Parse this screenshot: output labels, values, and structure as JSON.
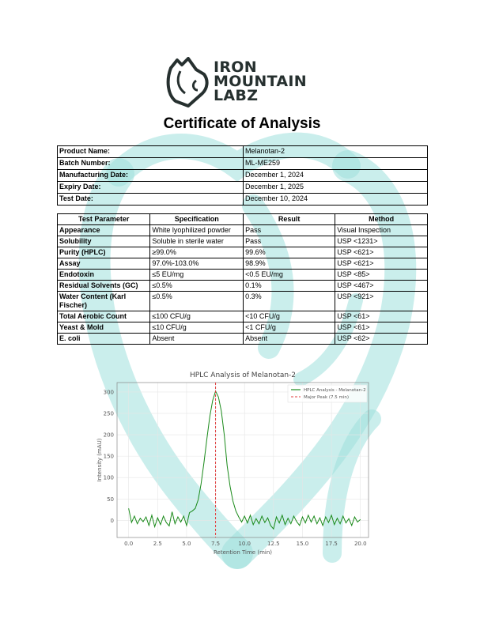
{
  "logo": {
    "line1": "IRON",
    "line2": "MOUNTAIN",
    "line3": "LABZ"
  },
  "title": "Certificate of Analysis",
  "info": [
    {
      "label": "Product Name:",
      "value": "Melanotan-2"
    },
    {
      "label": "Batch Number:",
      "value": "ML-ME259"
    },
    {
      "label": "Manufacturing Date:",
      "value": "December 1, 2024"
    },
    {
      "label": "Expiry Date:",
      "value": "December 1, 2025"
    },
    {
      "label": "Test Date:",
      "value": "December 10, 2024"
    }
  ],
  "tests": {
    "headers": [
      "Test Parameter",
      "Specification",
      "Result",
      "Method"
    ],
    "rows": [
      [
        "Appearance",
        "White lyophilized powder",
        "Pass",
        "Visual Inspection"
      ],
      [
        "Solubility",
        "Soluble in sterile water",
        "Pass",
        "USP <1231>"
      ],
      [
        "Purity (HPLC)",
        "≥99.0%",
        "99.6%",
        "USP <621>"
      ],
      [
        "Assay",
        "97.0%-103.0%",
        "98.9%",
        "USP <621>"
      ],
      [
        "Endotoxin",
        "≤5 EU/mg",
        "<0.5 EU/mg",
        "USP <85>"
      ],
      [
        "Residual Solvents (GC)",
        "≤0.5%",
        "0.1%",
        "USP <467>"
      ],
      [
        "Water Content (Karl Fischer)",
        "≤0.5%",
        "0.3%",
        "USP <921>"
      ],
      [
        "Total Aerobic Count",
        "≤100 CFU/g",
        "<10 CFU/g",
        "USP <61>"
      ],
      [
        "Yeast & Mold",
        "≤10 CFU/g",
        "<1 CFU/g",
        "USP <61>"
      ],
      [
        "E. coli",
        "Absent",
        "Absent",
        "USP <62>"
      ]
    ]
  },
  "chart_data": {
    "type": "line",
    "title": "HPLC Analysis of Melanotan-2",
    "xlabel": "Retention Time (min)",
    "ylabel": "Intensity (mAU)",
    "xlim": [
      -1,
      20.7
    ],
    "ylim": [
      -40,
      322
    ],
    "xticks": [
      "0.0",
      "2.5",
      "5.0",
      "7.5",
      "10.0",
      "12.5",
      "15.0",
      "17.5",
      "20.0"
    ],
    "yticks": [
      "0",
      "50",
      "100",
      "150",
      "200",
      "250",
      "300"
    ],
    "grid": true,
    "legend_position": "top-right",
    "series": [
      {
        "name": "HPLC Analysis - Melanotan-2",
        "color": "#1a8a1a",
        "x": [
          0,
          0.25,
          0.5,
          0.75,
          1,
          1.25,
          1.5,
          1.75,
          2,
          2.25,
          2.5,
          2.75,
          3,
          3.25,
          3.5,
          3.75,
          4,
          4.25,
          4.5,
          4.75,
          5,
          5.25,
          5.5,
          5.75,
          6,
          6.25,
          6.5,
          6.75,
          7,
          7.25,
          7.5,
          7.75,
          8,
          8.25,
          8.5,
          8.75,
          9,
          9.25,
          9.5,
          9.75,
          10,
          10.25,
          10.5,
          10.75,
          11,
          11.25,
          11.5,
          11.75,
          12,
          12.25,
          12.5,
          12.75,
          13,
          13.25,
          13.5,
          13.75,
          14,
          14.25,
          14.5,
          14.75,
          15,
          15.25,
          15.5,
          15.75,
          16,
          16.25,
          16.5,
          16.75,
          17,
          17.25,
          17.5,
          17.75,
          18,
          18.25,
          18.5,
          18.75,
          19,
          19.25,
          19.5,
          19.75,
          20
        ],
        "y": [
          28,
          -5,
          10,
          -8,
          5,
          -3,
          8,
          -12,
          12,
          -15,
          6,
          -10,
          10,
          -5,
          -13,
          20,
          -8,
          8,
          -4,
          10,
          -12,
          18,
          22,
          28,
          48,
          85,
          135,
          190,
          242,
          280,
          302,
          288,
          255,
          200,
          128,
          80,
          45,
          22,
          8,
          -4,
          10,
          -6,
          12,
          -10,
          4,
          -8,
          10,
          -5,
          6,
          -12,
          -20,
          8,
          -6,
          12,
          -10,
          5,
          -8,
          10,
          -3,
          -12,
          8,
          -6,
          12,
          -4,
          10,
          -8,
          6,
          -12,
          8,
          -5,
          12,
          -10,
          5,
          -8,
          10,
          -6,
          4,
          -12,
          8,
          -4,
          2
        ]
      },
      {
        "name": "Major Peak (7.5 min)",
        "color": "#e03c3c",
        "x": 7.5,
        "style": "dashed"
      }
    ]
  }
}
